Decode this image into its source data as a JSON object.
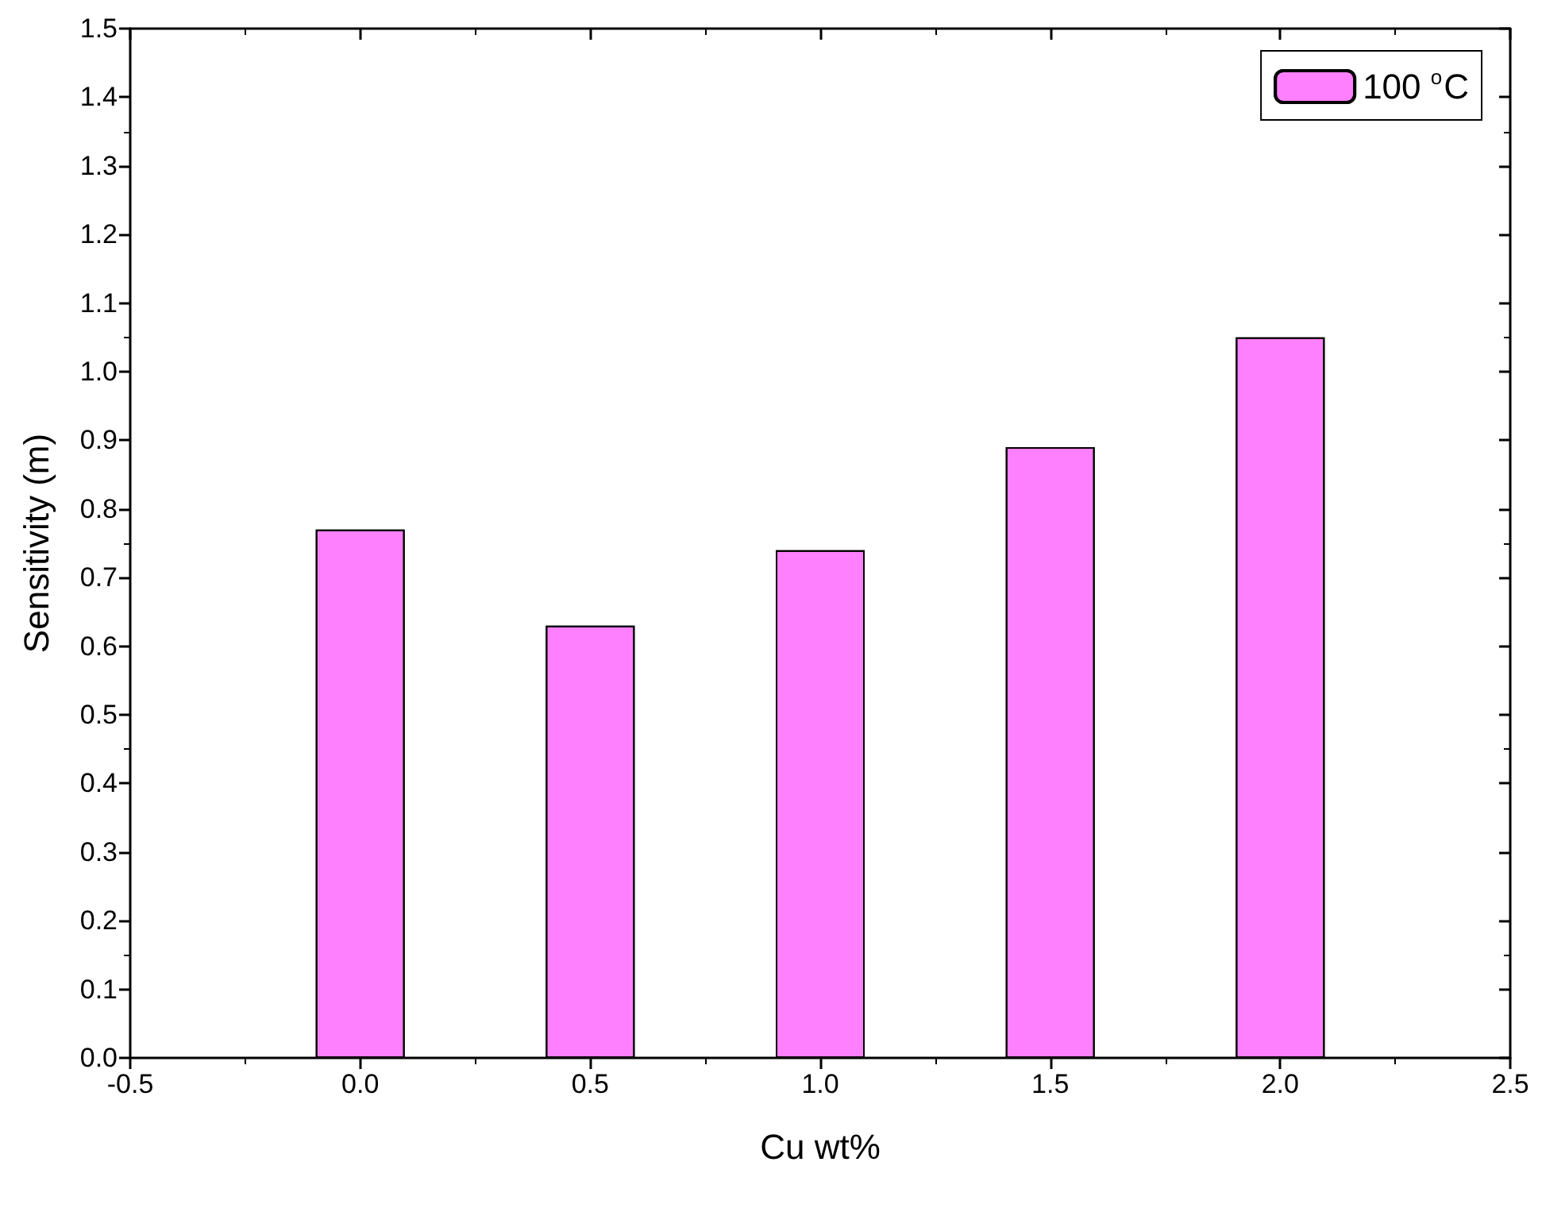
{
  "chart_data": {
    "type": "bar",
    "xlabel": "Cu wt%",
    "ylabel": "Sensitivity (m)",
    "x": [
      0,
      0.5,
      1.0,
      1.5,
      2.0
    ],
    "series": [
      {
        "name": "100 $^{o}$C",
        "color": "#ff80ff",
        "values": [
          0.77,
          0.63,
          0.74,
          0.89,
          1.05
        ]
      }
    ],
    "xlim": [
      -0.5,
      2.5
    ],
    "xticks": [
      {
        "value": -0.5,
        "label": "-0.5"
      },
      {
        "value": 0,
        "label": "0.0"
      },
      {
        "value": 0.5,
        "label": "0.5"
      },
      {
        "value": 1,
        "label": "1.0"
      },
      {
        "value": 1.5,
        "label": "1.5"
      },
      {
        "value": 2,
        "label": "2.0"
      },
      {
        "value": 2.5,
        "label": "2.5"
      }
    ],
    "ylim": [
      0,
      1.5
    ],
    "yticks": [
      {
        "value": 0,
        "label": "0.0"
      },
      {
        "value": 0.1,
        "label": "0.1"
      },
      {
        "value": 0.2,
        "label": "0.2"
      },
      {
        "value": 0.3,
        "label": "0.3"
      },
      {
        "value": 0.4,
        "label": "0.4"
      },
      {
        "value": 0.5,
        "label": "0.5"
      },
      {
        "value": 0.6,
        "label": "0.6"
      },
      {
        "value": 0.7,
        "label": "0.7"
      },
      {
        "value": 0.8,
        "label": "0.8"
      },
      {
        "value": 0.9,
        "label": "0.9"
      },
      {
        "value": 1.0,
        "label": "1.0"
      },
      {
        "value": 1.1,
        "label": "1.1"
      },
      {
        "value": 1.2,
        "label": "1.2"
      },
      {
        "value": 1.3,
        "label": "1.3"
      },
      {
        "value": 1.4,
        "label": "1.4"
      },
      {
        "value": 1.5,
        "label": "1.5"
      }
    ],
    "grid": false,
    "legend": "top right"
  }
}
